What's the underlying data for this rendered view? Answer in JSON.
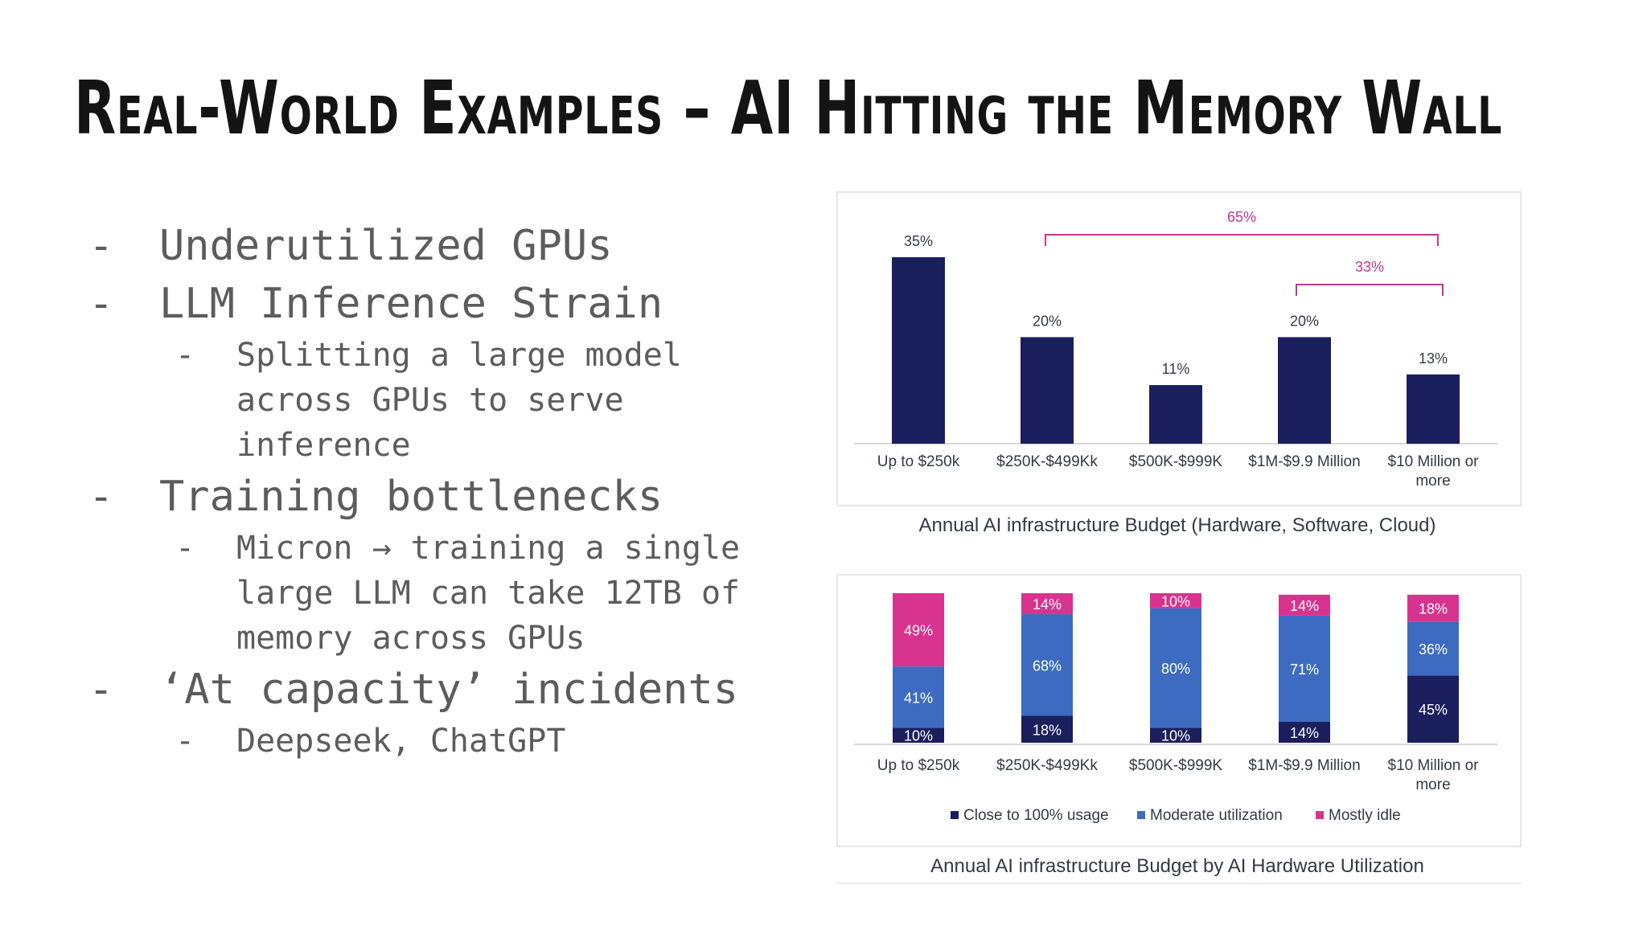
{
  "slide": {
    "title": "Real-World Examples – AI Hitting the Memory Wall",
    "bullets": [
      {
        "level": 1,
        "text": "Underutilized GPUs"
      },
      {
        "level": 1,
        "text": "LLM Inference Strain"
      },
      {
        "level": 2,
        "text": "Splitting a large model across GPUs to serve inference"
      },
      {
        "level": 1,
        "text": "Training bottlenecks"
      },
      {
        "level": 2,
        "text": "Micron → training a single large LLM can take 12TB of memory across GPUs"
      },
      {
        "level": 1,
        "text": "‘At capacity’ incidents"
      },
      {
        "level": 2,
        "text": "Deepseek, ChatGPT"
      }
    ],
    "dash": "-"
  },
  "chart_data": [
    {
      "type": "bar",
      "title": "Annual AI infrastructure Budget (Hardware, Software, Cloud)",
      "categories": [
        "Up to $250k",
        "$250K-$499Kk",
        "$500K-$999K",
        "$1M-$9.9 Million",
        "$10 Million or more"
      ],
      "values": [
        35,
        20,
        11,
        20,
        13
      ],
      "data_labels": [
        "35%",
        "20%",
        "11%",
        "20%",
        "13%"
      ],
      "bar_color": "#1b1f5e",
      "brackets": [
        {
          "label": "65%",
          "from_category": 1,
          "to_category": 4,
          "color": "#c2388f"
        },
        {
          "label": "33%",
          "from_category": 3,
          "to_category": 4,
          "color": "#c2388f"
        }
      ],
      "ylim": [
        0,
        35
      ],
      "grid": false,
      "legend": "none"
    },
    {
      "type": "bar",
      "stacked": true,
      "title": "Annual AI infrastructure Budget by AI Hardware Utilization",
      "categories": [
        "Up to $250k",
        "$250K-$499Kk",
        "$500K-$999K",
        "$1M-$9.9 Million",
        "$10 Million or more"
      ],
      "series": [
        {
          "name": "Close to 100% usage",
          "values": [
            10,
            18,
            10,
            14,
            45
          ],
          "color": "#1b1f5e"
        },
        {
          "name": "Moderate utilization",
          "values": [
            41,
            68,
            80,
            71,
            36
          ],
          "color": "#3d6bc2"
        },
        {
          "name": "Mostly idle",
          "values": [
            49,
            14,
            10,
            14,
            18
          ],
          "color": "#d8338e"
        }
      ],
      "ylim": [
        0,
        100
      ],
      "grid": false,
      "legend": "bottom"
    }
  ]
}
